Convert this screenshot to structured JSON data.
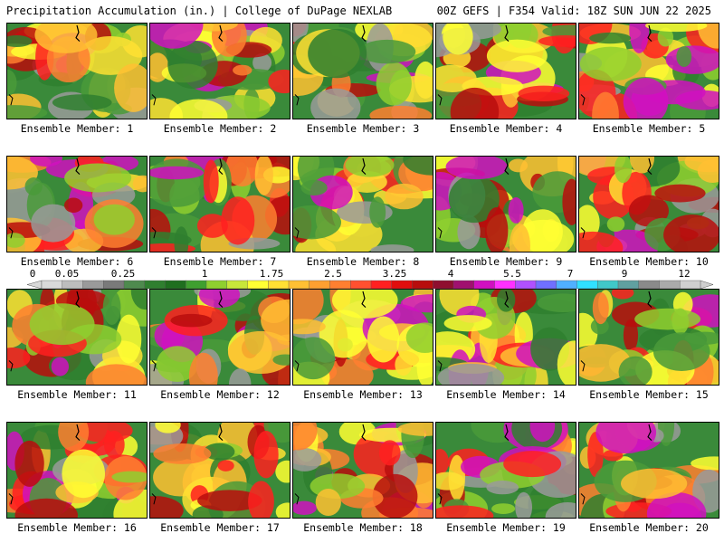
{
  "header": {
    "left": "Precipitation Accumulation (in.) | College of DuPage NEXLAB",
    "right": "00Z GEFS | F354 Valid: 18Z SUN JUN 22 2025"
  },
  "members": [
    {
      "label": "Ensemble Member: 1"
    },
    {
      "label": "Ensemble Member: 2"
    },
    {
      "label": "Ensemble Member: 3"
    },
    {
      "label": "Ensemble Member: 4"
    },
    {
      "label": "Ensemble Member: 5"
    },
    {
      "label": "Ensemble Member: 6"
    },
    {
      "label": "Ensemble Member: 7"
    },
    {
      "label": "Ensemble Member: 8"
    },
    {
      "label": "Ensemble Member: 9"
    },
    {
      "label": "Ensemble Member: 10"
    },
    {
      "label": "Ensemble Member: 11"
    },
    {
      "label": "Ensemble Member: 12"
    },
    {
      "label": "Ensemble Member: 13"
    },
    {
      "label": "Ensemble Member: 14"
    },
    {
      "label": "Ensemble Member: 15"
    },
    {
      "label": "Ensemble Member: 16"
    },
    {
      "label": "Ensemble Member: 17"
    },
    {
      "label": "Ensemble Member: 18"
    },
    {
      "label": "Ensemble Member: 19"
    },
    {
      "label": "Ensemble Member: 20"
    }
  ],
  "colorbar": {
    "tick_labels": [
      "0",
      "0.05",
      "0.25",
      "1",
      "1.75",
      "2.5",
      "3.25",
      "4",
      "5.5",
      "7",
      "9",
      "12"
    ],
    "colors": [
      "#d9d9d9",
      "#bdbdbd",
      "#9a9a9a",
      "#7a7a7a",
      "#4e8a4e",
      "#2f7f2f",
      "#1f6f1f",
      "#3f9f2f",
      "#8fcf2f",
      "#c8e63a",
      "#ffff33",
      "#ffe033",
      "#ffc033",
      "#ffa030",
      "#ff7f30",
      "#ff5030",
      "#ff2020",
      "#e00d0d",
      "#b80d0d",
      "#8f0f2f",
      "#a0106f",
      "#d010c0",
      "#ff30ff",
      "#b050ff",
      "#7070ff",
      "#50b0ff",
      "#30e0ff",
      "#40c8c8",
      "#60a0a0",
      "#8a8a8a",
      "#aaaaaa",
      "#cfcfcf"
    ]
  }
}
